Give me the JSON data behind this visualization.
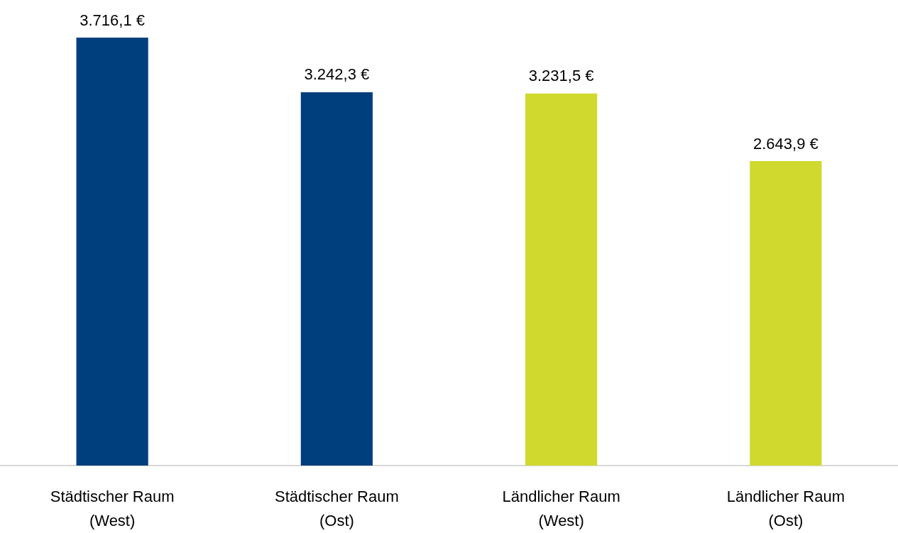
{
  "chart_data": {
    "type": "bar",
    "categories": [
      "Städtischer Raum\n(West)",
      "Städtischer Raum\n(Ost)",
      "Ländlicher Raum\n(West)",
      "Ländlicher Raum\n(Ost)"
    ],
    "values": [
      3716.1,
      3242.3,
      3231.5,
      2643.9
    ],
    "value_labels": [
      "3.716,1 €",
      "3.242,3 €",
      "3.231,5 €",
      "2.643,9 €"
    ],
    "colors": [
      "#003f7d",
      "#003f7d",
      "#cfd92e",
      "#cfd92e"
    ]
  }
}
